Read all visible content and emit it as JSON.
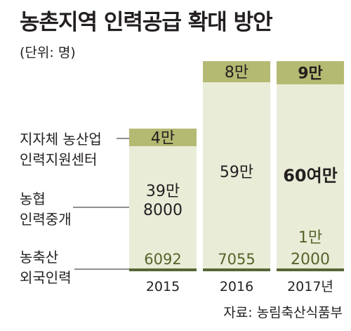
{
  "title": "농촌지역 인력공급 확대 방안",
  "unit": "(단위: 명)",
  "source": "자료: 농림축산식품부",
  "colors": {
    "top": "#b5ba73",
    "middle": "#e9ecd7",
    "bottom": "#566636",
    "text": "#231f20",
    "bold_text": "#55642a",
    "line": "#231f20"
  },
  "chart_data": {
    "type": "bar",
    "stacked": true,
    "categories": [
      "2015",
      "2016",
      "2017년"
    ],
    "series": [
      {
        "name": "농축산 외국인력",
        "values": [
          6092,
          7055,
          12000
        ],
        "labels": [
          "6092",
          "7055",
          "1만\n2000"
        ]
      },
      {
        "name": "농협 인력중개",
        "values": [
          398000,
          590000,
          600000
        ],
        "labels": [
          "39만\n8000",
          "59만",
          "60여만"
        ]
      },
      {
        "name": "지자체 농산업 인력지원센터",
        "values": [
          40000,
          80000,
          90000
        ],
        "labels": [
          "4만",
          "8만",
          "9만"
        ]
      }
    ],
    "legend_labels": [
      [
        "지자체 농산업",
        "인력지원센터"
      ],
      [
        "농협",
        "인력중개"
      ],
      [
        "농축산",
        "외국인력"
      ]
    ]
  }
}
